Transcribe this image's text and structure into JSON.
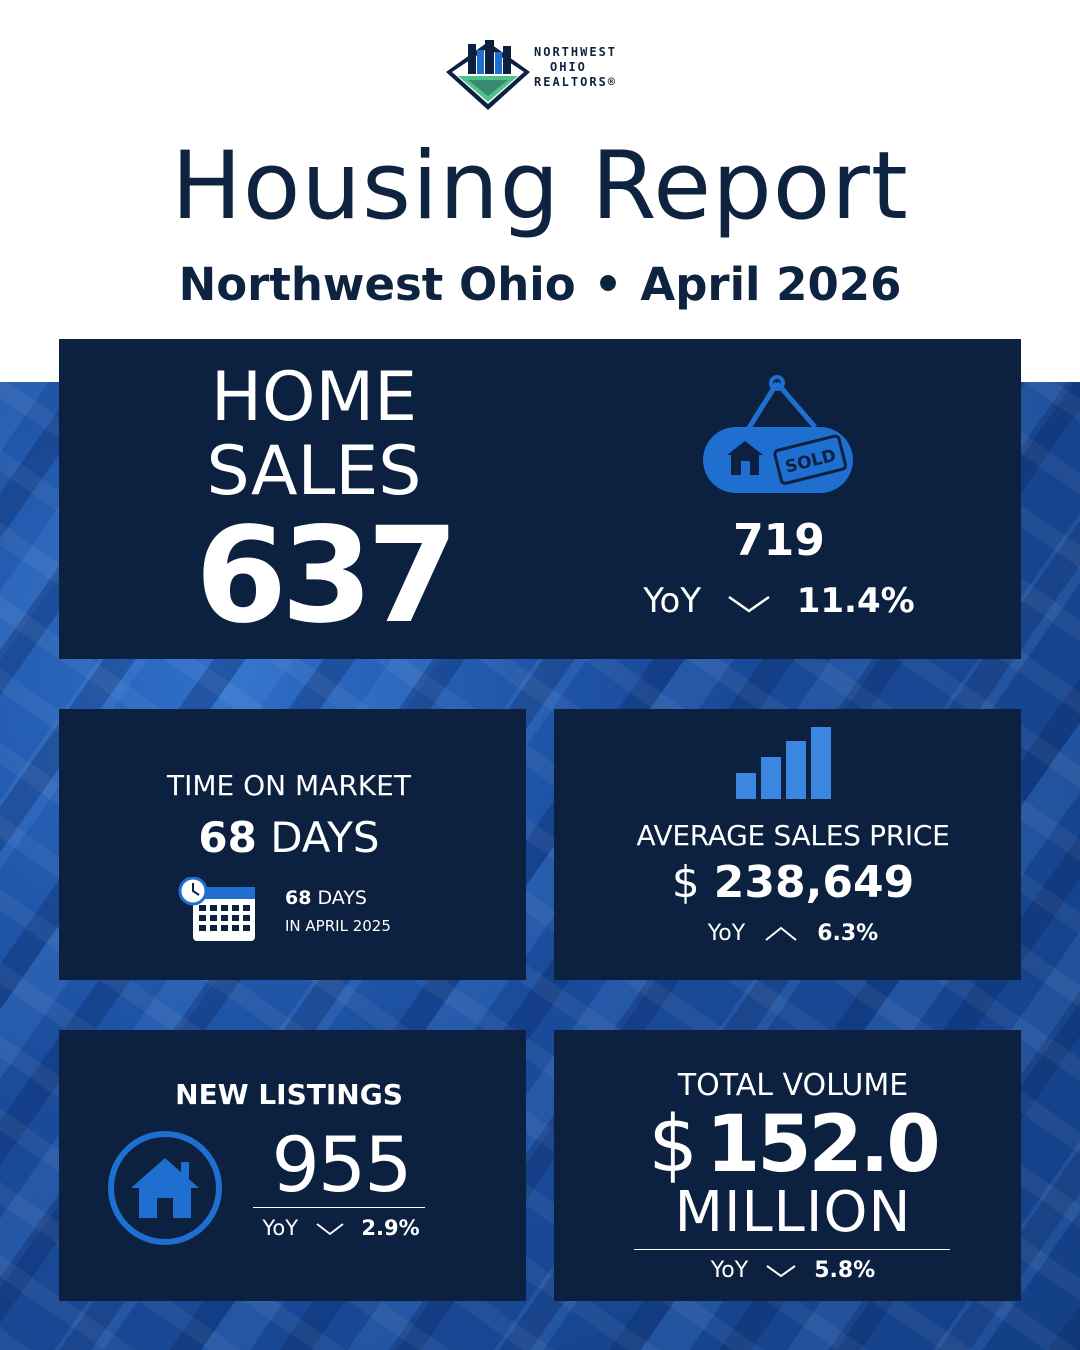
{
  "brand": {
    "logo_lines": [
      "NORTHWEST",
      "OHIO",
      "REALTORS®"
    ]
  },
  "header": {
    "title": "Housing Report",
    "region": "Northwest Ohio",
    "separator": "•",
    "period": "April 2026"
  },
  "home_sales": {
    "label_line1": "HOME",
    "label_line2": "SALES",
    "value": "637",
    "icon": "sold-sign-icon",
    "sign_text": "SOLD",
    "prior_value": "719",
    "yoy_label": "YoY",
    "trend": "down",
    "yoy_pct": "11.4%"
  },
  "time_on_market": {
    "label": "TIME ON MARKET",
    "value": "68",
    "unit": "DAYS",
    "icon": "calendar-clock-icon",
    "prior_value": "68",
    "prior_unit": "DAYS",
    "prior_period": "IN APRIL 2025"
  },
  "average_sales_price": {
    "icon": "bar-chart-icon",
    "label": "AVERAGE SALES PRICE",
    "currency": "$",
    "value": "238,649",
    "yoy_label": "YoY",
    "trend": "up",
    "yoy_pct": "6.3%"
  },
  "new_listings": {
    "label": "NEW LISTINGS",
    "icon": "house-icon",
    "value": "955",
    "yoy_label": "YoY",
    "trend": "down",
    "yoy_pct": "2.9%"
  },
  "total_volume": {
    "label": "TOTAL VOLUME",
    "currency": "$",
    "value": "152.0",
    "unit": "MILLION",
    "yoy_label": "YoY",
    "trend": "down",
    "yoy_pct": "5.8%"
  },
  "colors": {
    "navy": "#0c213f",
    "accent_blue": "#1f6fd1",
    "bright_blue": "#3b86e0",
    "logo_green": "#4fc28a"
  }
}
